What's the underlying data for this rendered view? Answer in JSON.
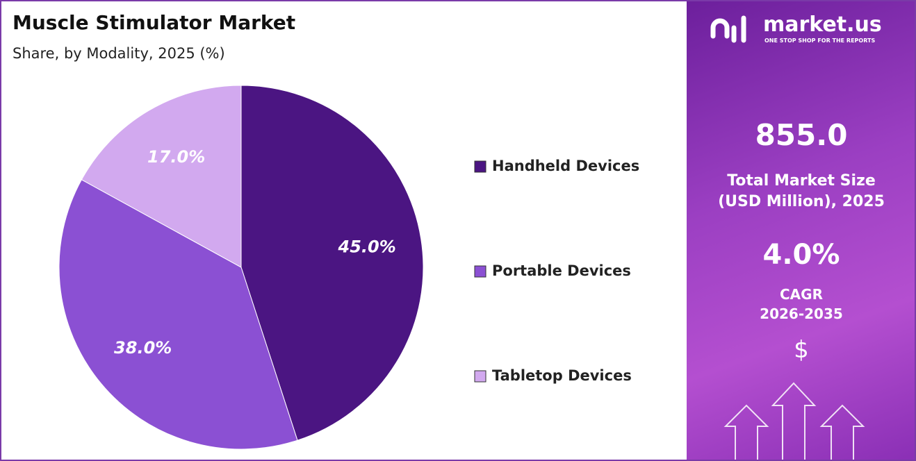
{
  "chart_data": {
    "type": "pie",
    "title": "Muscle Stimulator Market",
    "subtitle": "Share, by Modality, 2025 (%)",
    "categories": [
      "Handheld Devices",
      "Portable Devices",
      "Tabletop Devices"
    ],
    "values": [
      45,
      38,
      17
    ],
    "value_labels": [
      "45.0%",
      "38.0%",
      "17.0%"
    ],
    "colors": [
      "#4b1582",
      "#8b50d3",
      "#d2a9ef"
    ],
    "legend": "right"
  },
  "panel": {
    "brand": "market.us",
    "tagline": "ONE STOP SHOP FOR THE REPORTS",
    "market_size": "855.0",
    "market_size_label": [
      "Total Market Size",
      "(USD Million), 2025"
    ],
    "cagr": "4.0%",
    "cagr_label": [
      "CAGR",
      "2026-2035"
    ],
    "currency": "$"
  }
}
